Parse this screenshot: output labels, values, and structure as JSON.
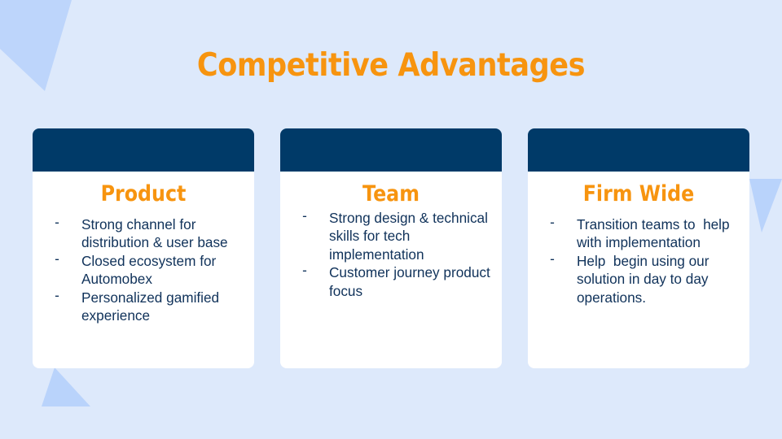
{
  "slide": {
    "title": "Competitive Advantages"
  },
  "colors": {
    "background": "#dde9fb",
    "accent": "#f7940f",
    "header": "#003a68",
    "text": "#10325a",
    "shape": "#b9d3fb"
  },
  "cards": [
    {
      "title": "Product",
      "items": [
        "Strong channel for distribution & user base",
        "Closed ecosystem for Automobex",
        "Personalized gamified experience"
      ]
    },
    {
      "title": "Team",
      "items": [
        "Strong design & technical skills for tech implementation",
        "Customer journey product focus"
      ]
    },
    {
      "title": "Firm Wide",
      "items": [
        "Transition teams to  help with implementation",
        "Help  begin using our solution in day to day operations."
      ]
    }
  ],
  "bullet_marker": "-"
}
